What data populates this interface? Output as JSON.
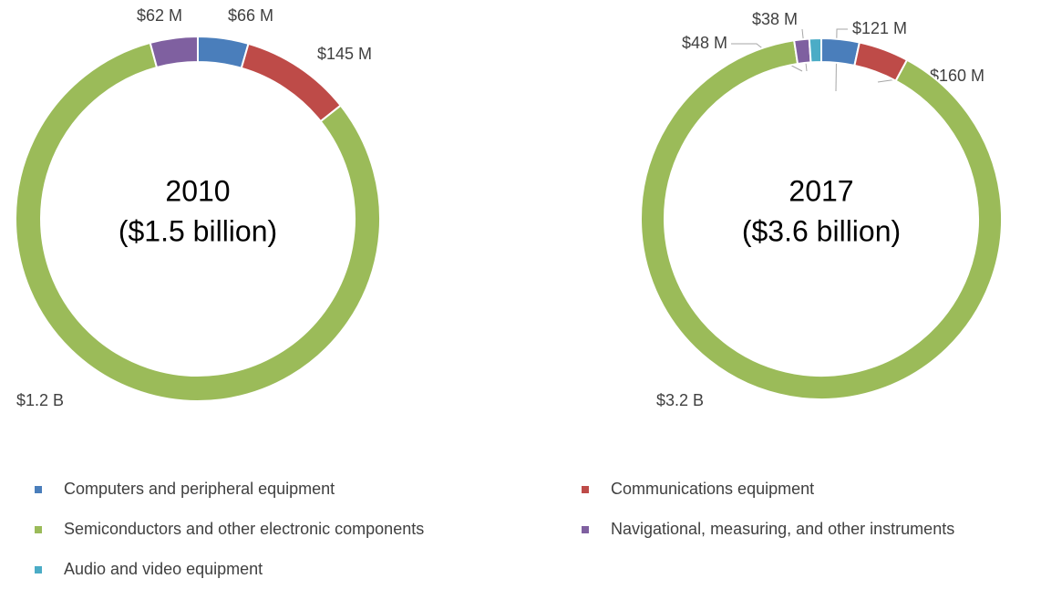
{
  "chart_data": [
    {
      "type": "donut",
      "center_label": [
        "2010",
        "($1.5 billion)"
      ],
      "categories": [
        "Computers and peripheral equipment",
        "Communications equipment",
        "Semiconductors and other electronic components",
        "Navigational, measuring, and other instruments"
      ],
      "values": [
        66000000,
        145000000,
        1200000000,
        62000000
      ],
      "value_labels": [
        "$66 M",
        "$145 M",
        "$1.2 B",
        "$62 M"
      ],
      "colors": [
        "#4a7ebb",
        "#be4b48",
        "#9bbb59",
        "#7f60a0"
      ]
    },
    {
      "type": "donut",
      "center_label": [
        "2017",
        "($3.6 billion)"
      ],
      "categories": [
        "Computers and peripheral equipment",
        "Communications equipment",
        "Semiconductors and other electronic components",
        "Navigational, measuring, and other instruments",
        "Audio and video equipment"
      ],
      "values": [
        121000000,
        160000000,
        3200000000,
        48000000,
        38000000
      ],
      "value_labels": [
        "$121 M",
        "$160 M",
        "$3.2 B",
        "$48 M",
        "$38 M"
      ],
      "colors": [
        "#4a7ebb",
        "#be4b48",
        "#9bbb59",
        "#7f60a0",
        "#4bacc6"
      ]
    }
  ],
  "legend": [
    {
      "name": "Computers and peripheral equipment",
      "color": "#4a7ebb"
    },
    {
      "name": "Communications equipment",
      "color": "#be4b48"
    },
    {
      "name": "Semiconductors and other electronic components",
      "color": "#9bbb59"
    },
    {
      "name": "Navigational, measuring, and other instruments",
      "color": "#7f60a0"
    },
    {
      "name": "Audio and video equipment",
      "color": "#4bacc6"
    }
  ]
}
